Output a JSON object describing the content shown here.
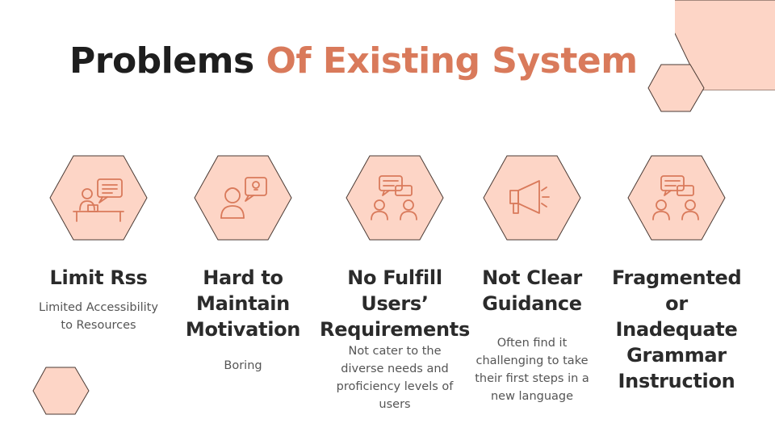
{
  "slide": {
    "title_part1": "Problems",
    "title_part2": "Of Existing System"
  },
  "colors": {
    "accent": "#d97a5b",
    "hex_fill": "#fdd5c6",
    "hex_stroke": "#4a3a34",
    "title_dark": "#1e1e1e"
  },
  "problems": [
    {
      "icon": "person-desk-chat-icon",
      "title": "Limit Rss",
      "description": "Limited Accessibility to Resources"
    },
    {
      "icon": "person-idea-bubble-icon",
      "title": "Hard to Maintain Motivation",
      "description": "Boring"
    },
    {
      "icon": "two-people-chat-icon",
      "title": "No Fulfill Users’ Requirements",
      "description": "Not cater to the diverse needs and proficiency levels of users"
    },
    {
      "icon": "megaphone-icon",
      "title": "Not Clear Guidance",
      "description": "Often find it challenging to take their first steps in a new language"
    },
    {
      "icon": "two-people-chat-icon",
      "title": "Fragmented or Inadequate Grammar Instruction",
      "description": ""
    }
  ]
}
